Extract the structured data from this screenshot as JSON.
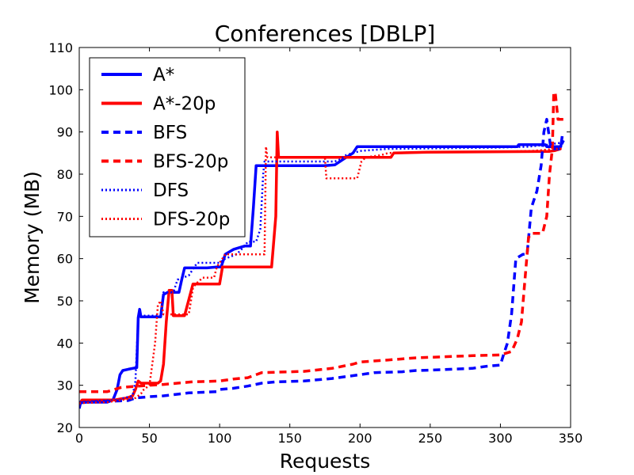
{
  "chart_data": {
    "type": "line",
    "title": "Conferences [DBLP]",
    "xlabel": "Requests",
    "ylabel": "Memory (MB)",
    "xlim": [
      0,
      350
    ],
    "ylim": [
      20,
      110
    ],
    "xticks": [
      "0",
      "50",
      "100",
      "150",
      "200",
      "250",
      "300",
      "350"
    ],
    "yticks": [
      "20",
      "30",
      "40",
      "50",
      "60",
      "70",
      "80",
      "90",
      "100",
      "110"
    ],
    "grid": false,
    "legend_position": "top-left",
    "series": [
      {
        "name": "A*",
        "color": "#0000ff",
        "style": "solid",
        "points": [
          [
            0,
            24.5
          ],
          [
            1,
            26
          ],
          [
            20,
            26
          ],
          [
            24,
            26.5
          ],
          [
            27,
            29
          ],
          [
            29,
            32.5
          ],
          [
            31,
            33.5
          ],
          [
            35,
            33.8
          ],
          [
            41,
            34.2
          ],
          [
            42,
            46
          ],
          [
            43,
            48
          ],
          [
            44,
            46.2
          ],
          [
            55,
            46.2
          ],
          [
            58,
            46.2
          ],
          [
            60,
            51.5
          ],
          [
            63,
            52
          ],
          [
            71,
            52
          ],
          [
            73,
            55
          ],
          [
            75,
            57.8
          ],
          [
            91,
            57.8
          ],
          [
            98,
            58
          ],
          [
            101,
            58
          ],
          [
            103,
            60
          ],
          [
            104,
            61
          ],
          [
            110,
            62.2
          ],
          [
            118,
            63
          ],
          [
            122,
            63
          ],
          [
            124,
            72
          ],
          [
            126,
            82
          ],
          [
            175,
            82
          ],
          [
            182,
            82.2
          ],
          [
            188,
            83.5
          ],
          [
            195,
            85
          ],
          [
            198,
            86.5
          ],
          [
            300,
            86.5
          ],
          [
            312,
            86.5
          ],
          [
            313,
            87
          ],
          [
            332,
            87
          ],
          [
            333,
            86.5
          ],
          [
            343,
            86.5
          ],
          [
            344,
            89
          ]
        ]
      },
      {
        "name": "A*-20p",
        "color": "#ff0000",
        "style": "solid",
        "points": [
          [
            0,
            25.5
          ],
          [
            2,
            26.5
          ],
          [
            25,
            26.5
          ],
          [
            30,
            26.8
          ],
          [
            34,
            27
          ],
          [
            38,
            27.5
          ],
          [
            40,
            29
          ],
          [
            42,
            31
          ],
          [
            44,
            30.5
          ],
          [
            56,
            30.5
          ],
          [
            58,
            31
          ],
          [
            60,
            35
          ],
          [
            62,
            45
          ],
          [
            64,
            52.5
          ],
          [
            66,
            52.5
          ],
          [
            67,
            46.5
          ],
          [
            75,
            46.5
          ],
          [
            81,
            54
          ],
          [
            96,
            54
          ],
          [
            100,
            54
          ],
          [
            102,
            58
          ],
          [
            137,
            58
          ],
          [
            138,
            62
          ],
          [
            140,
            70
          ],
          [
            141,
            90
          ],
          [
            142,
            84
          ],
          [
            212,
            84
          ],
          [
            222,
            84
          ],
          [
            224,
            85
          ],
          [
            248,
            85.2
          ],
          [
            335,
            85.4
          ],
          [
            339,
            85.6
          ],
          [
            343,
            86
          ]
        ]
      },
      {
        "name": "BFS",
        "color": "#0000ff",
        "style": "dashed",
        "points": [
          [
            0,
            25.8
          ],
          [
            5,
            26
          ],
          [
            35,
            26.4
          ],
          [
            40,
            27
          ],
          [
            50,
            27.3
          ],
          [
            60,
            27.5
          ],
          [
            78,
            28.2
          ],
          [
            98,
            28.5
          ],
          [
            100,
            29
          ],
          [
            110,
            29.3
          ],
          [
            120,
            29.8
          ],
          [
            130,
            30.5
          ],
          [
            140,
            30.8
          ],
          [
            160,
            31
          ],
          [
            180,
            31.6
          ],
          [
            200,
            32.5
          ],
          [
            210,
            33
          ],
          [
            230,
            33.2
          ],
          [
            240,
            33.5
          ],
          [
            250,
            33.6
          ],
          [
            280,
            34
          ],
          [
            290,
            34.5
          ],
          [
            300,
            34.8
          ],
          [
            302,
            37
          ],
          [
            305,
            40
          ],
          [
            308,
            47
          ],
          [
            311,
            60
          ],
          [
            316,
            61
          ],
          [
            319,
            61
          ],
          [
            322,
            72
          ],
          [
            326,
            76
          ],
          [
            329,
            82
          ],
          [
            331,
            90
          ],
          [
            333,
            93
          ],
          [
            336,
            86
          ],
          [
            342,
            86
          ],
          [
            345,
            88
          ]
        ]
      },
      {
        "name": "BFS-20p",
        "color": "#ff0000",
        "style": "dashed",
        "points": [
          [
            0,
            28.5
          ],
          [
            20,
            28.5
          ],
          [
            30,
            29.5
          ],
          [
            50,
            30
          ],
          [
            60,
            30.2
          ],
          [
            70,
            30.5
          ],
          [
            80,
            30.8
          ],
          [
            100,
            31
          ],
          [
            110,
            31.5
          ],
          [
            120,
            31.8
          ],
          [
            130,
            33
          ],
          [
            160,
            33.3
          ],
          [
            180,
            34
          ],
          [
            195,
            35
          ],
          [
            200,
            35.5
          ],
          [
            220,
            36
          ],
          [
            240,
            36.5
          ],
          [
            280,
            37
          ],
          [
            300,
            37.2
          ],
          [
            308,
            38
          ],
          [
            312,
            41
          ],
          [
            315,
            45
          ],
          [
            317,
            53
          ],
          [
            320,
            65
          ],
          [
            322,
            66
          ],
          [
            330,
            66
          ],
          [
            333,
            70
          ],
          [
            335,
            80
          ],
          [
            337,
            86
          ],
          [
            338,
            99
          ],
          [
            339,
            99.5
          ],
          [
            341,
            93
          ],
          [
            345,
            93
          ]
        ]
      },
      {
        "name": "DFS",
        "color": "#0000ff",
        "style": "dotted",
        "points": [
          [
            0,
            26
          ],
          [
            10,
            26.2
          ],
          [
            28,
            26.5
          ],
          [
            32,
            27
          ],
          [
            38,
            27.5
          ],
          [
            40,
            31
          ],
          [
            42,
            46
          ],
          [
            45,
            46.5
          ],
          [
            58,
            46.5
          ],
          [
            60,
            52
          ],
          [
            67,
            52
          ],
          [
            70,
            55
          ],
          [
            78,
            56
          ],
          [
            84,
            59
          ],
          [
            100,
            59
          ],
          [
            104,
            60
          ],
          [
            112,
            61
          ],
          [
            118,
            63
          ],
          [
            120,
            64
          ],
          [
            126,
            64
          ],
          [
            129,
            67
          ],
          [
            131,
            80
          ],
          [
            132,
            83
          ],
          [
            182,
            83
          ],
          [
            186,
            83.5
          ],
          [
            190,
            84.5
          ],
          [
            200,
            85.5
          ],
          [
            220,
            86
          ],
          [
            300,
            86.3
          ],
          [
            320,
            86.5
          ],
          [
            328,
            86.8
          ],
          [
            335,
            87
          ],
          [
            338,
            87.2
          ],
          [
            345,
            87.5
          ]
        ]
      },
      {
        "name": "DFS-20p",
        "color": "#ff0000",
        "style": "dotted",
        "points": [
          [
            0,
            25.8
          ],
          [
            20,
            26
          ],
          [
            30,
            26.5
          ],
          [
            40,
            27
          ],
          [
            44,
            28
          ],
          [
            46,
            29
          ],
          [
            50,
            30
          ],
          [
            54,
            40
          ],
          [
            56,
            49
          ],
          [
            58,
            50
          ],
          [
            60,
            46.8
          ],
          [
            78,
            46.8
          ],
          [
            81,
            53
          ],
          [
            83,
            54
          ],
          [
            88,
            55.5
          ],
          [
            96,
            55.5
          ],
          [
            98,
            58
          ],
          [
            104,
            61
          ],
          [
            132,
            61
          ],
          [
            133,
            86.5
          ],
          [
            134,
            84
          ],
          [
            175,
            84
          ],
          [
            176,
            79
          ],
          [
            198,
            79
          ],
          [
            201,
            83
          ],
          [
            204,
            84
          ],
          [
            215,
            84.5
          ],
          [
            220,
            85
          ],
          [
            240,
            85.2
          ],
          [
            300,
            85.3
          ],
          [
            322,
            85.5
          ],
          [
            330,
            85.7
          ],
          [
            338,
            86
          ],
          [
            342,
            86
          ],
          [
            345,
            86
          ]
        ]
      }
    ]
  }
}
